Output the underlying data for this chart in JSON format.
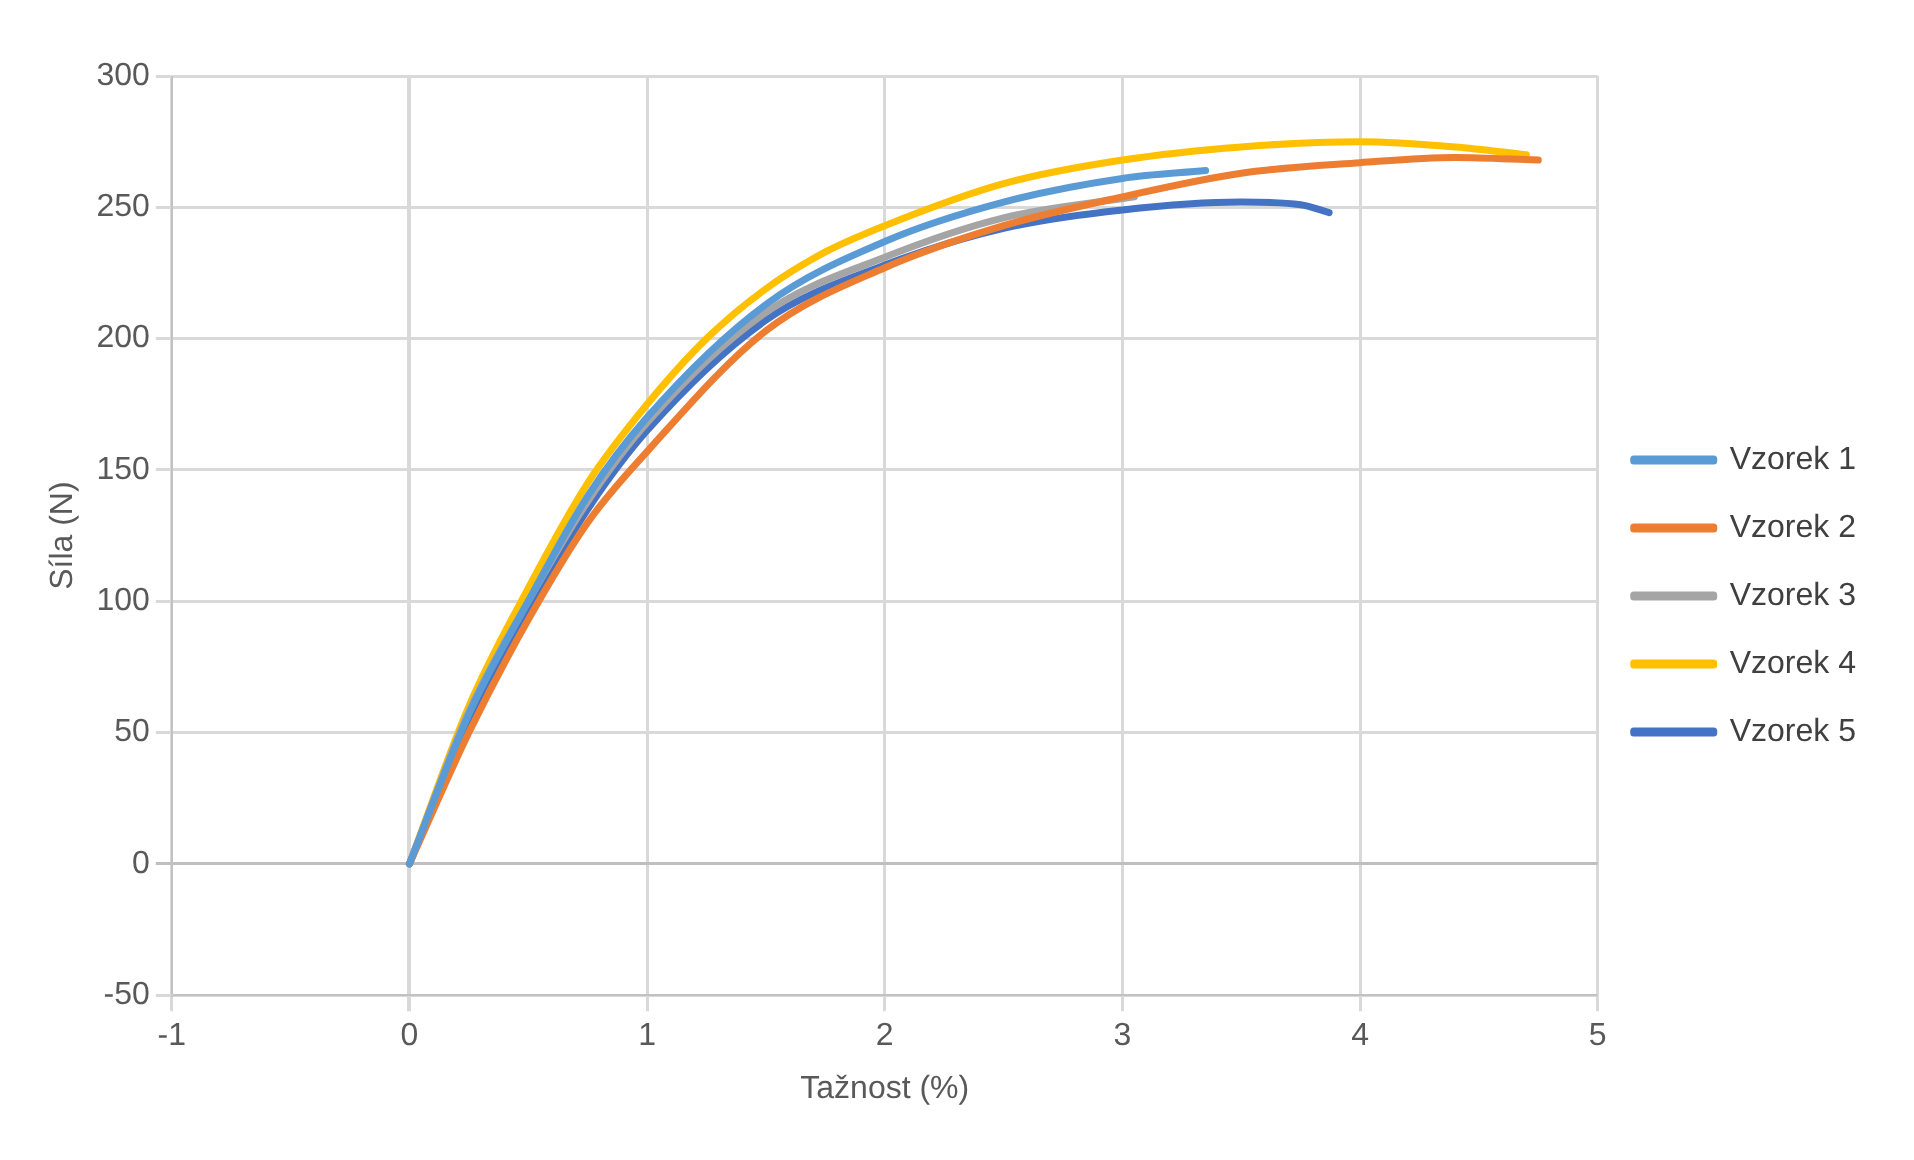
{
  "chart_data": {
    "type": "line",
    "xlabel": "Tažnost (%)",
    "ylabel": "Síla (N)",
    "xlim": [
      -1,
      5
    ],
    "xticks": [
      -1,
      0,
      1,
      2,
      3,
      4,
      5
    ],
    "ylim": [
      -50,
      300
    ],
    "yticks": [
      -50,
      0,
      50,
      100,
      150,
      200,
      250,
      300
    ],
    "grid": true,
    "legend": "right",
    "marker": "none",
    "line_style": "solid",
    "series": [
      {
        "name": "Vzorek 1",
        "color": "#5b9bd5",
        "x": [
          0,
          0.25,
          0.5,
          0.75,
          1,
          1.5,
          2,
          2.5,
          3,
          3.35
        ],
        "values": [
          0,
          57,
          100,
          140,
          170,
          213,
          237,
          252,
          261,
          264
        ]
      },
      {
        "name": "Vzorek 2",
        "color": "#ed7d31",
        "x": [
          0,
          0.25,
          0.5,
          0.75,
          1,
          1.5,
          2,
          2.5,
          3,
          3.5,
          4,
          4.4,
          4.75
        ],
        "values": [
          0,
          50,
          93,
          130,
          157,
          203,
          227,
          243,
          254,
          263,
          267,
          269,
          268
        ]
      },
      {
        "name": "Vzorek 3",
        "color": "#a5a5a5",
        "x": [
          0,
          0.25,
          0.5,
          0.75,
          1,
          1.5,
          2,
          2.5,
          3.05
        ],
        "values": [
          0,
          58,
          100,
          138,
          168,
          210,
          231,
          246,
          254
        ]
      },
      {
        "name": "Vzorek 4",
        "color": "#ffc000",
        "x": [
          0,
          0.25,
          0.5,
          0.75,
          1,
          1.25,
          1.5,
          1.75,
          2,
          2.5,
          3,
          3.5,
          4,
          4.4,
          4.7
        ],
        "values": [
          0,
          60,
          105,
          145,
          175,
          200,
          219,
          233,
          243,
          259,
          268,
          273,
          275,
          273,
          270
        ]
      },
      {
        "name": "Vzorek 5",
        "color": "#4472c4",
        "x": [
          0,
          0.25,
          0.5,
          0.75,
          1,
          1.5,
          2,
          2.5,
          3,
          3.5,
          3.75,
          3.87
        ],
        "values": [
          0,
          55,
          97,
          135,
          165,
          207,
          228,
          242,
          249,
          252,
          251,
          248
        ]
      }
    ]
  }
}
